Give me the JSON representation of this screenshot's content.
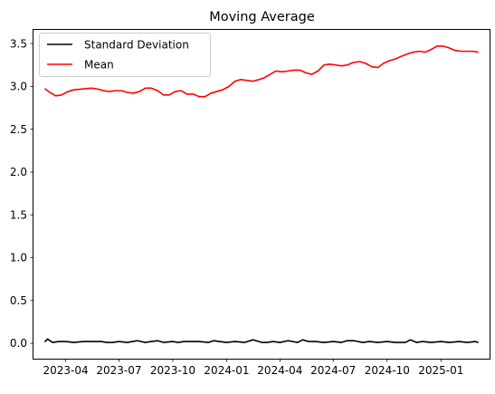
{
  "chart_data": {
    "type": "line",
    "title": "Moving Average",
    "xlabel": "",
    "ylabel": "",
    "x_tick_labels": [
      "2023-04",
      "2023-07",
      "2023-10",
      "2024-01",
      "2024-04",
      "2024-07",
      "2024-10",
      "2025-01"
    ],
    "x_ticks": [
      "2023-04-01",
      "2023-07-01",
      "2023-10-01",
      "2024-01-01",
      "2024-04-01",
      "2024-07-01",
      "2024-10-01",
      "2025-01-01"
    ],
    "xlim": [
      "2023-02-05",
      "2025-03-25"
    ],
    "y_ticks": [
      0.0,
      0.5,
      1.0,
      1.5,
      2.0,
      2.5,
      3.0,
      3.5
    ],
    "y_tick_labels": [
      "0.0",
      "0.5",
      "1.0",
      "1.5",
      "2.0",
      "2.5",
      "3.0",
      "3.5"
    ],
    "ylim": [
      -0.18,
      3.66
    ],
    "grid": false,
    "legend_position": "upper-left",
    "series": [
      {
        "name": "Standard Deviation",
        "color": "#000000",
        "x": [
          "2023-02-25",
          "2023-03-01",
          "2023-03-05",
          "2023-03-10",
          "2023-03-20",
          "2023-04-01",
          "2023-04-15",
          "2023-05-01",
          "2023-05-15",
          "2023-06-01",
          "2023-06-10",
          "2023-06-20",
          "2023-07-01",
          "2023-07-15",
          "2023-08-01",
          "2023-08-15",
          "2023-08-25",
          "2023-09-05",
          "2023-09-15",
          "2023-10-01",
          "2023-10-10",
          "2023-10-20",
          "2023-11-01",
          "2023-11-15",
          "2023-12-01",
          "2023-12-10",
          "2023-12-20",
          "2024-01-01",
          "2024-01-15",
          "2024-02-01",
          "2024-02-15",
          "2024-02-20",
          "2024-03-01",
          "2024-03-10",
          "2024-03-20",
          "2024-04-01",
          "2024-04-15",
          "2024-05-01",
          "2024-05-10",
          "2024-05-20",
          "2024-06-01",
          "2024-06-15",
          "2024-07-01",
          "2024-07-15",
          "2024-07-25",
          "2024-08-05",
          "2024-08-20",
          "2024-09-01",
          "2024-09-15",
          "2024-10-01",
          "2024-10-15",
          "2024-11-01",
          "2024-11-10",
          "2024-11-20",
          "2024-12-01",
          "2024-12-15",
          "2025-01-01",
          "2025-01-15",
          "2025-02-01",
          "2025-02-15",
          "2025-03-01",
          "2025-03-05"
        ],
        "values": [
          0.02,
          0.05,
          0.03,
          0.01,
          0.02,
          0.02,
          0.01,
          0.02,
          0.02,
          0.02,
          0.01,
          0.01,
          0.02,
          0.01,
          0.03,
          0.01,
          0.02,
          0.03,
          0.01,
          0.02,
          0.01,
          0.02,
          0.02,
          0.02,
          0.01,
          0.03,
          0.02,
          0.01,
          0.02,
          0.01,
          0.04,
          0.03,
          0.01,
          0.01,
          0.02,
          0.01,
          0.03,
          0.01,
          0.04,
          0.02,
          0.02,
          0.01,
          0.02,
          0.01,
          0.03,
          0.03,
          0.01,
          0.02,
          0.01,
          0.02,
          0.01,
          0.01,
          0.04,
          0.01,
          0.02,
          0.01,
          0.02,
          0.01,
          0.02,
          0.01,
          0.02,
          0.01
        ]
      },
      {
        "name": "Mean",
        "color": "#ff0000",
        "x": [
          "2023-02-25",
          "2023-03-05",
          "2023-03-15",
          "2023-03-25",
          "2023-04-05",
          "2023-04-15",
          "2023-05-01",
          "2023-05-15",
          "2023-05-25",
          "2023-06-05",
          "2023-06-15",
          "2023-06-25",
          "2023-07-05",
          "2023-07-15",
          "2023-07-25",
          "2023-08-05",
          "2023-08-15",
          "2023-08-25",
          "2023-09-05",
          "2023-09-15",
          "2023-09-25",
          "2023-10-05",
          "2023-10-15",
          "2023-10-25",
          "2023-11-05",
          "2023-11-15",
          "2023-11-25",
          "2023-12-05",
          "2023-12-15",
          "2023-12-25",
          "2024-01-05",
          "2024-01-15",
          "2024-01-25",
          "2024-02-05",
          "2024-02-15",
          "2024-02-25",
          "2024-03-05",
          "2024-03-15",
          "2024-03-25",
          "2024-04-05",
          "2024-04-15",
          "2024-04-25",
          "2024-05-05",
          "2024-05-15",
          "2024-05-25",
          "2024-06-05",
          "2024-06-15",
          "2024-06-25",
          "2024-07-05",
          "2024-07-15",
          "2024-07-25",
          "2024-08-05",
          "2024-08-15",
          "2024-08-25",
          "2024-09-05",
          "2024-09-15",
          "2024-09-25",
          "2024-10-05",
          "2024-10-15",
          "2024-10-25",
          "2024-11-05",
          "2024-11-15",
          "2024-11-25",
          "2024-12-05",
          "2024-12-15",
          "2024-12-25",
          "2025-01-05",
          "2025-01-15",
          "2025-01-25",
          "2025-02-05",
          "2025-02-15",
          "2025-02-25",
          "2025-03-05"
        ],
        "values": [
          2.97,
          2.93,
          2.89,
          2.9,
          2.94,
          2.96,
          2.97,
          2.98,
          2.97,
          2.95,
          2.94,
          2.95,
          2.95,
          2.93,
          2.92,
          2.94,
          2.98,
          2.98,
          2.95,
          2.9,
          2.9,
          2.94,
          2.95,
          2.91,
          2.91,
          2.88,
          2.88,
          2.92,
          2.94,
          2.96,
          3.0,
          3.06,
          3.08,
          3.07,
          3.06,
          3.08,
          3.1,
          3.14,
          3.18,
          3.17,
          3.18,
          3.19,
          3.19,
          3.16,
          3.14,
          3.18,
          3.25,
          3.26,
          3.25,
          3.24,
          3.25,
          3.28,
          3.29,
          3.27,
          3.23,
          3.22,
          3.27,
          3.3,
          3.32,
          3.35,
          3.38,
          3.4,
          3.41,
          3.4,
          3.43,
          3.47,
          3.47,
          3.45,
          3.42,
          3.41,
          3.41,
          3.41,
          3.4
        ]
      }
    ]
  }
}
